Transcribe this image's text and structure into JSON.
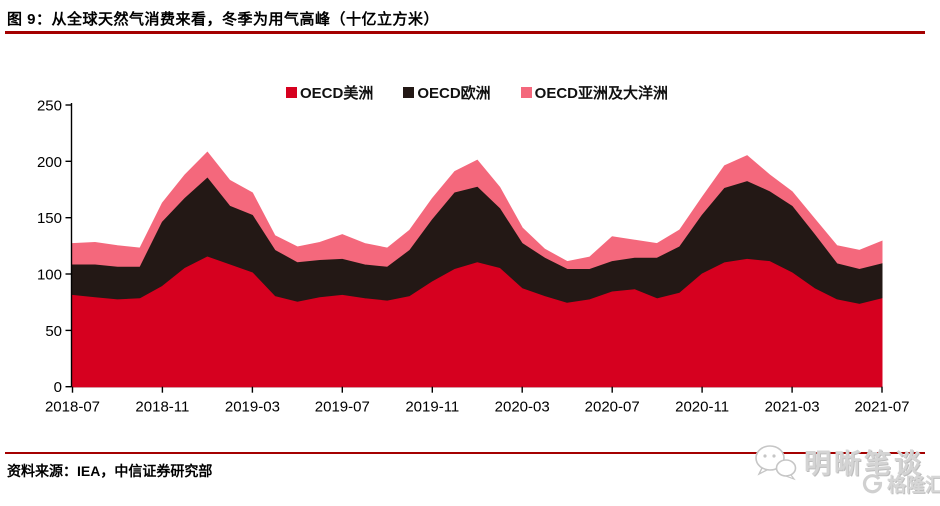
{
  "figure": {
    "title": "图 9：从全球天然气消费来看，冬季为用气高峰（十亿立方米）",
    "source_note": "资料来源：IEA，中信证券研究部"
  },
  "watermark": {
    "account_name": "明晰笔谈",
    "platform_name": "格隆汇"
  },
  "colors": {
    "americas_red": "#d6001f",
    "europe_dark": "#231815",
    "asia_oceania_pink": "#f4687c",
    "rule_dark_red": "#a40000",
    "axis_black": "#000000",
    "watermark_gray": "#d4d4d4"
  },
  "chart_data": {
    "type": "area",
    "stacked": true,
    "title": "从全球天然气消费来看，冬季为用气高峰",
    "unit": "十亿立方米",
    "xlabel": "",
    "ylabel": "",
    "ylim": [
      0,
      250
    ],
    "yticks": [
      0,
      50,
      100,
      150,
      200,
      250
    ],
    "grid": false,
    "legend_position": "top-center",
    "x": [
      "2018-07",
      "2018-08",
      "2018-09",
      "2018-10",
      "2018-11",
      "2018-12",
      "2019-01",
      "2019-02",
      "2019-03",
      "2019-04",
      "2019-05",
      "2019-06",
      "2019-07",
      "2019-08",
      "2019-09",
      "2019-10",
      "2019-11",
      "2019-12",
      "2020-01",
      "2020-02",
      "2020-03",
      "2020-04",
      "2020-05",
      "2020-06",
      "2020-07",
      "2020-08",
      "2020-09",
      "2020-10",
      "2020-11",
      "2020-12",
      "2021-01",
      "2021-02",
      "2021-03",
      "2021-04",
      "2021-05",
      "2021-06",
      "2021-07"
    ],
    "x_tick_labels": [
      "2018-07",
      "2018-11",
      "2019-03",
      "2019-07",
      "2019-11",
      "2020-03",
      "2020-07",
      "2020-11",
      "2021-03",
      "2021-07"
    ],
    "series": [
      {
        "name": "OECD美洲",
        "color": "#d6001f",
        "values": [
          81,
          79,
          77,
          78,
          89,
          105,
          115,
          108,
          101,
          80,
          75,
          79,
          81,
          78,
          76,
          80,
          93,
          104,
          110,
          105,
          87,
          80,
          74,
          77,
          84,
          86,
          78,
          83,
          100,
          110,
          113,
          111,
          101,
          87,
          77,
          73,
          78
        ]
      },
      {
        "name": "OECD欧洲",
        "color": "#231815",
        "values": [
          27,
          29,
          29,
          28,
          57,
          62,
          70,
          52,
          51,
          41,
          35,
          33,
          32,
          30,
          30,
          41,
          55,
          68,
          67,
          53,
          40,
          34,
          30,
          27,
          27,
          28,
          36,
          41,
          52,
          66,
          69,
          62,
          59,
          48,
          32,
          31,
          31
        ]
      },
      {
        "name": "OECD亚洲及大洋洲",
        "color": "#f4687c",
        "values": [
          19,
          20,
          19,
          17,
          17,
          21,
          23,
          23,
          20,
          13,
          14,
          16,
          22,
          19,
          17,
          18,
          19,
          19,
          24,
          19,
          14,
          8,
          7,
          11,
          22,
          16,
          13,
          15,
          16,
          20,
          23,
          15,
          13,
          14,
          16,
          17,
          20
        ]
      }
    ]
  }
}
